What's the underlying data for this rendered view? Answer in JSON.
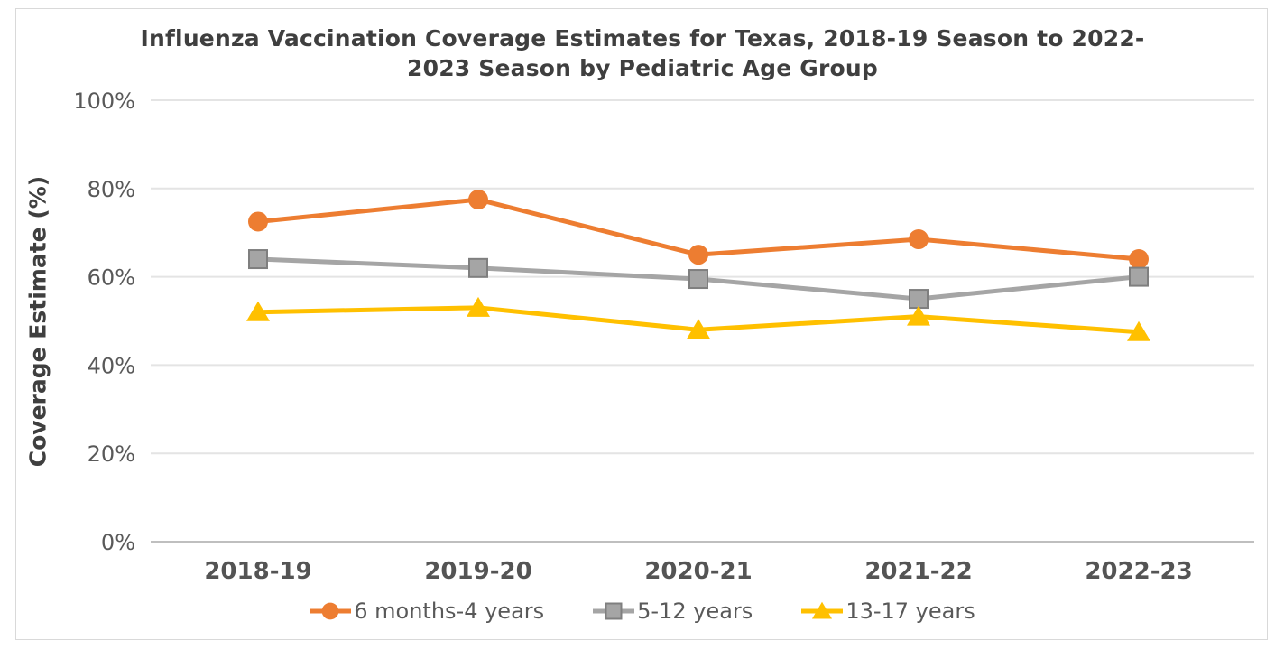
{
  "frame": {
    "border_color": "#D9D9D9",
    "background": "#FFFFFF"
  },
  "chart_data": {
    "type": "line",
    "title": "Influenza Vaccination Coverage Estimates for Texas, 2018-19 Season to 2022-2023 Season by Pediatric Age Group",
    "title_lines": [
      "Influenza Vaccination Coverage Estimates for Texas, 2018-19 Season to 2022-",
      "2023 Season by Pediatric Age Group"
    ],
    "xlabel": "",
    "ylabel": "Coverage Estimate (%)",
    "categories": [
      "2018-19",
      "2019-20",
      "2020-21",
      "2021-22",
      "2022-23"
    ],
    "series": [
      {
        "name": "6 months-4 years",
        "marker": "circle",
        "color": "#ED7D31",
        "values": [
          72.5,
          77.5,
          65,
          68.5,
          64
        ]
      },
      {
        "name": "5-12 years",
        "marker": "square",
        "color": "#A5A5A5",
        "marker_border": "#7F7F7F",
        "values": [
          64,
          62,
          59.5,
          55,
          60
        ]
      },
      {
        "name": "13-17 years",
        "marker": "triangle",
        "color": "#FFC000",
        "values": [
          52,
          53,
          48,
          51,
          47.5
        ]
      }
    ],
    "y_axis": {
      "tick_values": [
        0,
        20,
        40,
        60,
        80,
        100
      ],
      "tick_labels": [
        "0%",
        "20%",
        "40%",
        "60%",
        "80%",
        "100%"
      ],
      "min": 0,
      "max": 100,
      "grid": true
    },
    "legend_position": "bottom",
    "colors": {
      "grid_line": "#E4E4E4",
      "axis_line": "#BFBFBF",
      "tick_text": "#595959",
      "x_label_text": "#545454",
      "title_text": "#3F3F3F"
    }
  }
}
